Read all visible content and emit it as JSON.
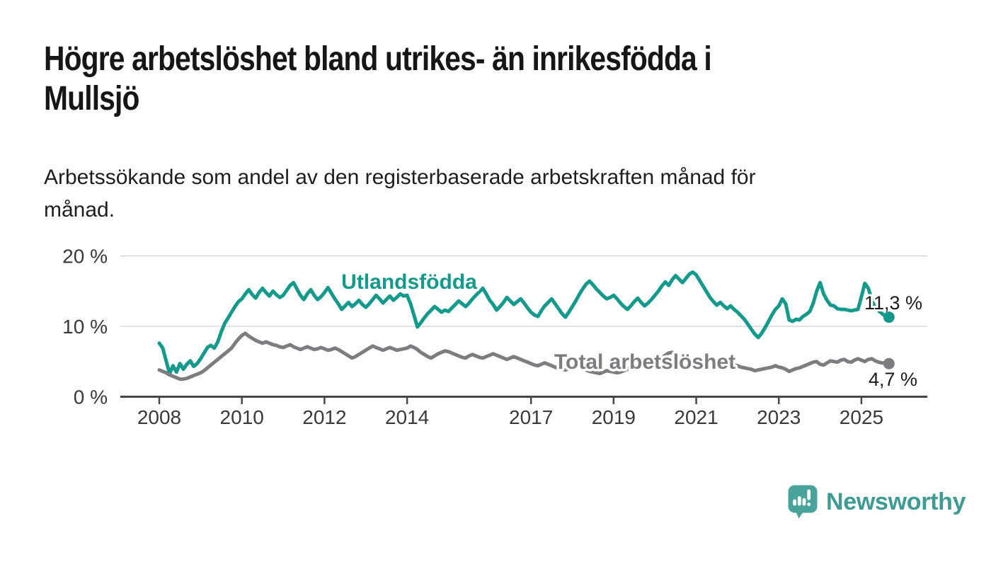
{
  "header": {
    "title": "Högre arbetslöshet bland utrikes- än inrikesfödda i\nMullsjö",
    "subtitle": "Arbetssökande som andel av den registerbaserade arbetskraften månad för\nmånad."
  },
  "footer": {
    "brand": "Newsworthy",
    "logo_icon": "newsworthy-speech-bubble-bar-chart-icon"
  },
  "colors": {
    "accent_teal": "#149a8c",
    "line_gray": "#7d7d81",
    "logo_bubble": "#4aa39b",
    "brand_text": "#3d9b94",
    "grid": "#d8d8d8",
    "axis": "#47474b"
  },
  "chart_data": {
    "type": "line",
    "title": "Högre arbetslöshet bland utrikes- än inrikesfödda i Mullsjö",
    "subtitle": "Arbetssökande som andel av den registerbaserade arbetskraften månad för månad.",
    "x_unit": "month",
    "x_start": "2008-01",
    "x_end": "2025-09",
    "ylim": [
      0,
      20
    ],
    "grid": "horizontal",
    "legend_position": "inline-labels",
    "yticks": [
      {
        "value": 0,
        "label": "0 %"
      },
      {
        "value": 10,
        "label": "10 %"
      },
      {
        "value": 20,
        "label": "20 %"
      }
    ],
    "xticks": [
      {
        "year": 2008,
        "label": "2008"
      },
      {
        "year": 2010,
        "label": "2010"
      },
      {
        "year": 2012,
        "label": "2012"
      },
      {
        "year": 2014,
        "label": "2014"
      },
      {
        "year": 2017,
        "label": "2017"
      },
      {
        "year": 2019,
        "label": "2019"
      },
      {
        "year": 2021,
        "label": "2021"
      },
      {
        "year": 2023,
        "label": "2023"
      },
      {
        "year": 2025,
        "label": "2025"
      }
    ],
    "series": [
      {
        "name": "Utlandsfödda",
        "color": "#149a8c",
        "end_value": 11.3,
        "end_label": "11,3 %",
        "values": [
          7.6,
          6.9,
          5.1,
          3.3,
          4.4,
          3.5,
          4.7,
          3.9,
          4.6,
          5.1,
          4.3,
          4.7,
          5.4,
          6.2,
          7.0,
          7.3,
          6.9,
          7.8,
          9.2,
          10.4,
          11.2,
          12.0,
          12.8,
          13.5,
          13.9,
          14.6,
          15.2,
          14.5,
          14.0,
          14.8,
          15.4,
          14.8,
          14.3,
          15.0,
          14.5,
          14.1,
          14.4,
          15.1,
          15.8,
          16.2,
          15.3,
          14.4,
          13.8,
          14.6,
          15.2,
          14.4,
          13.8,
          14.2,
          14.8,
          15.5,
          14.7,
          13.9,
          13.2,
          12.4,
          12.9,
          13.4,
          12.8,
          13.2,
          13.7,
          13.1,
          12.7,
          13.2,
          13.8,
          14.4,
          13.9,
          13.3,
          13.8,
          14.3,
          13.7,
          14.1,
          14.6,
          14.3,
          14.4,
          13.2,
          11.6,
          9.9,
          10.5,
          11.2,
          11.8,
          12.3,
          12.8,
          12.4,
          12.0,
          12.3,
          12.1,
          12.6,
          13.1,
          13.6,
          13.2,
          12.8,
          13.3,
          13.9,
          14.4,
          14.9,
          15.4,
          14.6,
          13.7,
          13.1,
          12.3,
          12.8,
          13.4,
          14.1,
          13.6,
          13.1,
          13.5,
          13.9,
          13.3,
          12.6,
          12.0,
          11.6,
          11.4,
          12.2,
          12.9,
          13.4,
          13.9,
          13.2,
          12.5,
          11.8,
          11.3,
          12.0,
          12.8,
          13.6,
          14.5,
          15.3,
          16.0,
          16.4,
          15.9,
          15.3,
          14.8,
          14.3,
          13.9,
          14.1,
          14.4,
          13.9,
          13.3,
          12.8,
          12.4,
          12.9,
          13.5,
          14.0,
          13.4,
          12.9,
          13.3,
          13.8,
          14.4,
          15.0,
          15.7,
          16.3,
          15.8,
          16.6,
          17.2,
          16.7,
          16.2,
          16.8,
          17.4,
          17.7,
          17.3,
          16.5,
          15.7,
          14.9,
          14.1,
          13.5,
          13.0,
          13.4,
          12.9,
          12.5,
          12.9,
          12.4,
          12.0,
          11.5,
          11.0,
          10.3,
          9.6,
          8.9,
          8.4,
          9.0,
          9.8,
          10.7,
          11.6,
          12.4,
          12.9,
          13.9,
          13.2,
          10.9,
          10.7,
          11.0,
          10.9,
          11.4,
          11.7,
          12.1,
          13.3,
          15.0,
          16.2,
          14.6,
          13.7,
          13.0,
          12.9,
          12.5,
          12.4,
          12.4,
          12.3,
          12.2,
          12.3,
          12.4,
          14.2,
          16.1,
          15.4,
          13.8,
          12.6,
          12.2,
          11.8,
          11.4,
          11.3
        ]
      },
      {
        "name": "Total arbetslöshet",
        "color": "#7d7d81",
        "end_value": 4.7,
        "end_label": "4,7 %",
        "values": [
          3.8,
          3.6,
          3.4,
          3.1,
          2.9,
          2.7,
          2.5,
          2.5,
          2.6,
          2.8,
          3.0,
          3.2,
          3.4,
          3.7,
          4.1,
          4.5,
          4.9,
          5.3,
          5.7,
          6.1,
          6.5,
          6.9,
          7.6,
          8.2,
          8.7,
          9.0,
          8.6,
          8.3,
          8.0,
          7.8,
          7.6,
          7.8,
          7.6,
          7.4,
          7.3,
          7.1,
          7.0,
          7.2,
          7.4,
          7.1,
          6.9,
          6.7,
          6.9,
          7.1,
          6.9,
          6.7,
          6.8,
          7.0,
          6.8,
          6.6,
          6.7,
          6.9,
          6.7,
          6.4,
          6.1,
          5.8,
          5.5,
          5.7,
          6.0,
          6.3,
          6.6,
          6.9,
          7.2,
          7.0,
          6.8,
          6.6,
          6.8,
          7.0,
          6.8,
          6.6,
          6.7,
          6.8,
          6.9,
          7.2,
          7.0,
          6.7,
          6.3,
          6.0,
          5.7,
          5.5,
          5.8,
          6.1,
          6.3,
          6.5,
          6.4,
          6.2,
          6.0,
          5.8,
          5.6,
          5.5,
          5.8,
          6.0,
          5.8,
          5.6,
          5.5,
          5.7,
          5.9,
          6.1,
          5.9,
          5.7,
          5.5,
          5.3,
          5.5,
          5.7,
          5.5,
          5.3,
          5.1,
          4.9,
          4.7,
          4.5,
          4.4,
          4.6,
          4.8,
          4.6,
          4.4,
          4.2,
          4.0,
          3.9,
          3.8,
          4.0,
          4.2,
          4.4,
          4.2,
          4.0,
          3.8,
          3.6,
          3.5,
          3.4,
          3.3,
          3.5,
          3.7,
          3.6,
          3.5,
          3.4,
          3.5,
          3.7,
          3.9,
          4.1,
          4.3,
          4.5,
          4.4,
          4.3,
          4.4,
          4.6,
          4.8,
          5.1,
          5.5,
          5.9,
          6.2,
          6.3,
          6.1,
          5.9,
          5.7,
          5.5,
          5.3,
          5.1,
          5.0,
          4.9,
          4.8,
          4.7,
          4.6,
          4.5,
          4.4,
          4.3,
          4.2,
          4.3,
          4.4,
          4.5,
          4.4,
          4.2,
          4.1,
          4.0,
          3.9,
          3.7,
          3.8,
          3.9,
          4.0,
          4.1,
          4.2,
          4.4,
          4.2,
          4.1,
          3.9,
          3.6,
          3.8,
          4.0,
          4.1,
          4.3,
          4.5,
          4.7,
          4.9,
          5.0,
          4.6,
          4.5,
          4.8,
          5.1,
          5.0,
          4.9,
          5.2,
          5.3,
          5.0,
          4.9,
          5.2,
          5.4,
          5.2,
          5.0,
          5.3,
          5.4,
          5.1,
          4.9,
          4.8,
          4.8,
          4.7
        ]
      }
    ]
  }
}
